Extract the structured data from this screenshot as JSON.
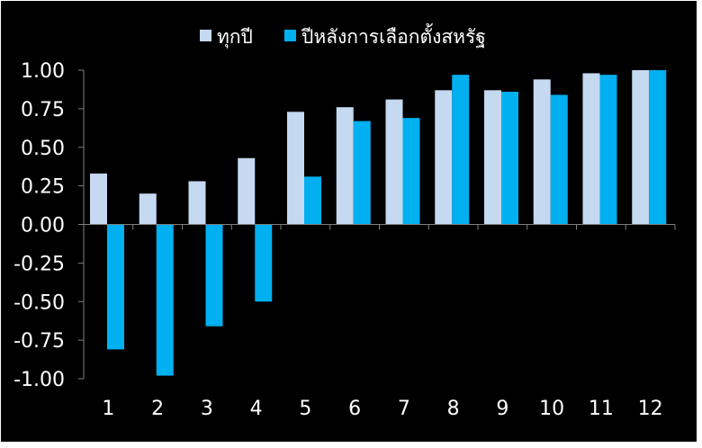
{
  "chart_data": {
    "type": "bar",
    "categories": [
      "1",
      "2",
      "3",
      "4",
      "5",
      "6",
      "7",
      "8",
      "9",
      "10",
      "11",
      "12"
    ],
    "series": [
      {
        "name": "ทุกปี",
        "color": "#c5d9f1",
        "values": [
          0.33,
          0.2,
          0.28,
          0.43,
          0.73,
          0.76,
          0.81,
          0.87,
          0.87,
          0.94,
          0.98,
          1.0
        ]
      },
      {
        "name": "ปีหลังการเลือกตั้งสหรัฐ",
        "color": "#00b0f0",
        "values": [
          -0.81,
          -0.98,
          -0.66,
          -0.5,
          0.31,
          0.67,
          0.69,
          0.97,
          0.86,
          0.84,
          0.97,
          1.0
        ]
      }
    ],
    "yticks": [
      "1.00",
      "0.75",
      "0.50",
      "0.25",
      "0.00",
      "-0.25",
      "-0.50",
      "-0.75",
      "-1.00"
    ],
    "ylim": [
      -1.0,
      1.0
    ],
    "legend_position": "top-center",
    "grid": false,
    "title": "",
    "xlabel": "",
    "ylabel": ""
  },
  "colors": {
    "background": "#000000",
    "border": "#ffffff",
    "axis": "#7f7f7f",
    "text": "#ffffff"
  }
}
